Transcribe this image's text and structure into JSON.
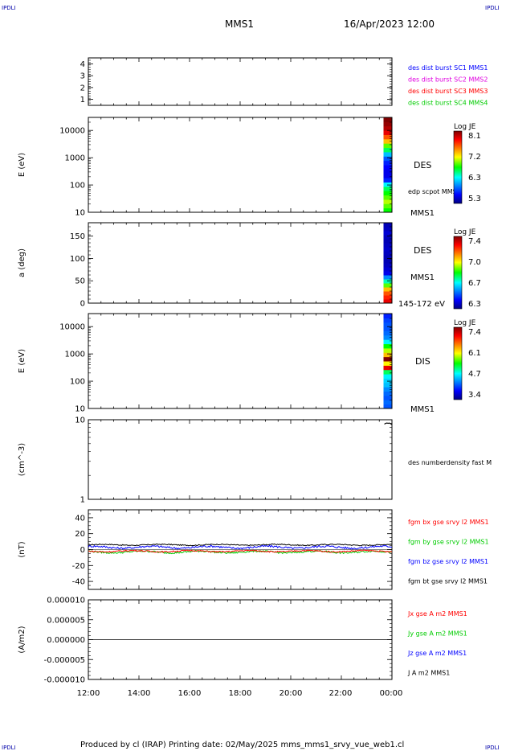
{
  "header": {
    "corner_tl": "IPDLI",
    "corner_tr": "IPDLI",
    "corner_bl": "IPDLI",
    "corner_br": "IPDLI",
    "spacecraft": "MMS1",
    "datetime": "16/Apr/2023 12:00"
  },
  "footer": {
    "text": "Produced by cl (IRAP)   Printing date: 02/May/2025   mms_mms1_srvy_vue_web1.cl"
  },
  "colors": {
    "blue": "#0000ff",
    "magenta": "#e000e0",
    "red": "#ff0000",
    "green": "#00cc00",
    "black": "#000000"
  },
  "chart_data": [
    {
      "type": "line",
      "id": "burst",
      "x_range": [
        "12:00",
        "00:00"
      ],
      "ylim": [
        0.5,
        4.5
      ],
      "yticks": [
        "1",
        "2",
        "3",
        "4"
      ],
      "legend": [
        {
          "text": "des dist burst SC1 MMS1",
          "color": "#0000ff"
        },
        {
          "text": "des dist burst SC2 MMS2",
          "color": "#e000e0"
        },
        {
          "text": "des dist burst SC3 MMS3",
          "color": "#ff0000"
        },
        {
          "text": "des dist burst SC4 MMS4",
          "color": "#00cc00"
        }
      ]
    },
    {
      "type": "heatmap",
      "id": "des-energy",
      "ylabel": "E (eV)",
      "yscale": "log",
      "ylim": [
        10,
        30000
      ],
      "yticks": [
        "10",
        "100",
        "1000",
        "10000"
      ],
      "data_start": "23:40",
      "profile": [
        0.5,
        0.55,
        0.6,
        0.55,
        0.5,
        0.45,
        0.35,
        0.15,
        0.1,
        0.1,
        0.12,
        0.15,
        0.2,
        0.3,
        0.45,
        0.55,
        0.7,
        0.8,
        0.9,
        0.95,
        0.98,
        1.0
      ],
      "label": "DES",
      "spacecraft": "MMS1",
      "overlay_label": "edp scpot MMS1",
      "colorbar": {
        "title": "Log JE",
        "ticks": [
          "8.1",
          "7.2",
          "6.3",
          "5.3"
        ]
      }
    },
    {
      "type": "heatmap",
      "id": "des-pitch",
      "ylabel": "a (deg)",
      "ylim": [
        0,
        180
      ],
      "yticks": [
        "0",
        "50",
        "100",
        "150"
      ],
      "data_start": "23:40",
      "profile": [
        0.9,
        0.85,
        0.8,
        0.7,
        0.55,
        0.4,
        0.25,
        0.1,
        0.08,
        0.06,
        0.05,
        0.05,
        0.06,
        0.07,
        0.06,
        0.05,
        0.06,
        0.08,
        0.06,
        0.05
      ],
      "label": "DES",
      "spacecraft": "MMS1",
      "energy_band": "145-172 eV",
      "colorbar": {
        "title": "Log JE",
        "ticks": [
          "7.4",
          "7.0",
          "6.7",
          "6.3"
        ]
      }
    },
    {
      "type": "heatmap",
      "id": "dis-energy",
      "ylabel": "E (eV)",
      "yscale": "log",
      "ylim": [
        10,
        30000
      ],
      "yticks": [
        "10",
        "100",
        "1000",
        "10000"
      ],
      "data_start": "23:40",
      "profile": [
        0.2,
        0.22,
        0.2,
        0.22,
        0.25,
        0.3,
        0.32,
        0.35,
        0.45,
        0.9,
        0.65,
        1.0,
        0.7,
        0.6,
        0.5,
        0.35,
        0.25,
        0.22,
        0.2,
        0.2,
        0.18,
        0.15
      ],
      "label": "DIS",
      "spacecraft": "MMS1",
      "colorbar": {
        "title": "Log JE",
        "ticks": [
          "7.4",
          "6.1",
          "4.7",
          "3.4"
        ]
      }
    },
    {
      "type": "line",
      "id": "density",
      "ylabel": "(cm^-3)",
      "yscale": "log",
      "ylim": [
        1,
        10
      ],
      "yticks": [
        "1",
        "10"
      ],
      "legend": [
        {
          "text": "des numberdensity fast M",
          "color": "#000000"
        }
      ],
      "series": [
        {
          "name": "des numberdensity fast M",
          "x": [
            23.7,
            23.75,
            23.8,
            23.85,
            23.9,
            23.95,
            24.0
          ],
          "y": [
            8.8,
            9.0,
            9.1,
            9.0,
            9.1,
            8.9,
            8.7
          ]
        }
      ]
    },
    {
      "type": "line",
      "id": "fgm",
      "ylabel": "(nT)",
      "ylim": [
        -50,
        50
      ],
      "yticks": [
        "-40",
        "-20",
        "0",
        "20",
        "40"
      ],
      "legend": [
        {
          "text": "fgm bx gse srvy l2 MMS1",
          "color": "#ff0000"
        },
        {
          "text": "fgm by gse srvy l2 MMS1",
          "color": "#00cc00"
        },
        {
          "text": "fgm bz gse srvy l2 MMS1",
          "color": "#0000ff"
        },
        {
          "text": "fgm bt gse srvy l2 MMS1",
          "color": "#000000"
        }
      ],
      "series": [
        {
          "name": "fgm bt gse srvy l2 MMS1",
          "color": "#000000",
          "base": 6,
          "amp": 1.2
        },
        {
          "name": "fgm bz gse srvy l2 MMS1",
          "color": "#0000ff",
          "base": 3,
          "amp": 2.5
        },
        {
          "name": "fgm by gse srvy l2 MMS1",
          "color": "#00cc00",
          "base": -3,
          "amp": 2.2
        },
        {
          "name": "fgm bx gse srvy l2 MMS1",
          "color": "#ff0000",
          "base": -2,
          "amp": 1.6
        }
      ]
    },
    {
      "type": "line",
      "id": "current",
      "ylabel": "(A/m2)",
      "ylim": [
        -1e-05,
        1e-05
      ],
      "yticks": [
        "-0.000010",
        "-0.000005",
        "0.000000",
        "0.000005",
        "0.000010"
      ],
      "legend": [
        {
          "text": "Jx gse A m2 MMS1",
          "color": "#ff0000"
        },
        {
          "text": "Jy gse A m2 MMS1",
          "color": "#00cc00"
        },
        {
          "text": "Jz gse A m2 MMS1",
          "color": "#0000ff"
        },
        {
          "text": "J A m2 MMS1",
          "color": "#000000"
        }
      ]
    }
  ],
  "x_axis": {
    "ticks": [
      "12:00",
      "14:00",
      "16:00",
      "18:00",
      "20:00",
      "22:00",
      "00:00"
    ]
  }
}
